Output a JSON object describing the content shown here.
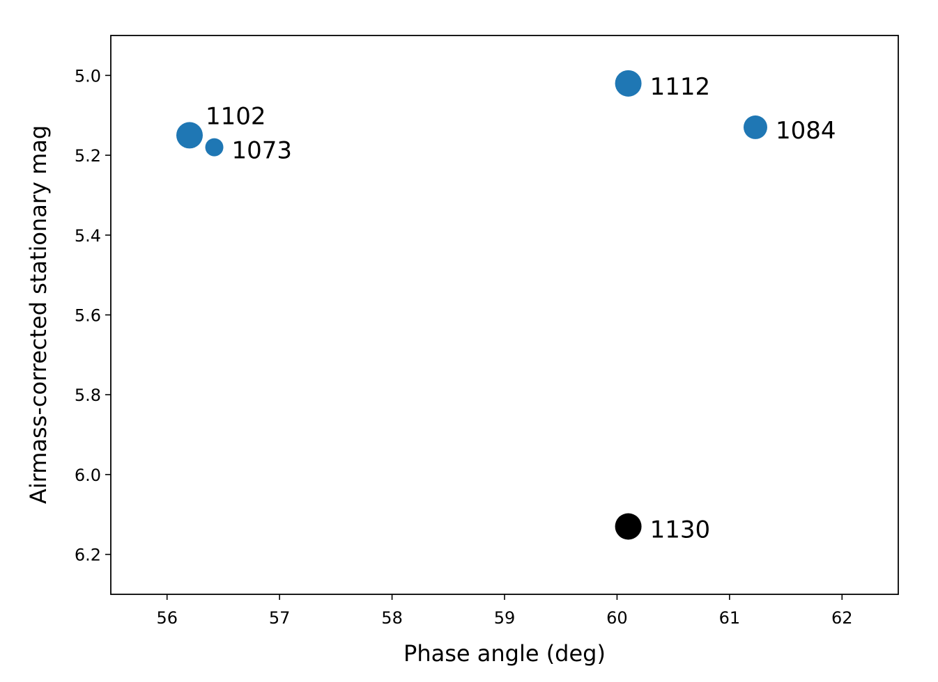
{
  "chart_data": {
    "type": "scatter",
    "title": "",
    "xlabel": "Phase angle (deg)",
    "ylabel": "Airmass-corrected stationary mag",
    "xlim": [
      55.5,
      62.5
    ],
    "ylim": [
      6.3,
      4.9
    ],
    "y_inverted": true,
    "grid": false,
    "legend": "none",
    "x_ticks": [
      "56",
      "57",
      "58",
      "59",
      "60",
      "61",
      "62"
    ],
    "y_ticks": [
      "5.0",
      "5.2",
      "5.4",
      "5.6",
      "5.8",
      "6.0",
      "6.2"
    ],
    "colors": {
      "blue": "#1f77b4",
      "black": "#000000"
    },
    "points": [
      {
        "label": "1102",
        "x": 56.2,
        "y": 5.15,
        "color": "#1f77b4",
        "label_pos": "upper-right",
        "size": "large"
      },
      {
        "label": "1073",
        "x": 56.42,
        "y": 5.18,
        "color": "#1f77b4",
        "label_pos": "right",
        "size": "small"
      },
      {
        "label": "1112",
        "x": 60.1,
        "y": 5.02,
        "color": "#1f77b4",
        "label_pos": "right",
        "size": "large"
      },
      {
        "label": "1084",
        "x": 61.23,
        "y": 5.13,
        "color": "#1f77b4",
        "label_pos": "right",
        "size": "medium"
      },
      {
        "label": "1130",
        "x": 60.1,
        "y": 6.13,
        "color": "#000000",
        "label_pos": "right",
        "size": "large"
      }
    ]
  }
}
